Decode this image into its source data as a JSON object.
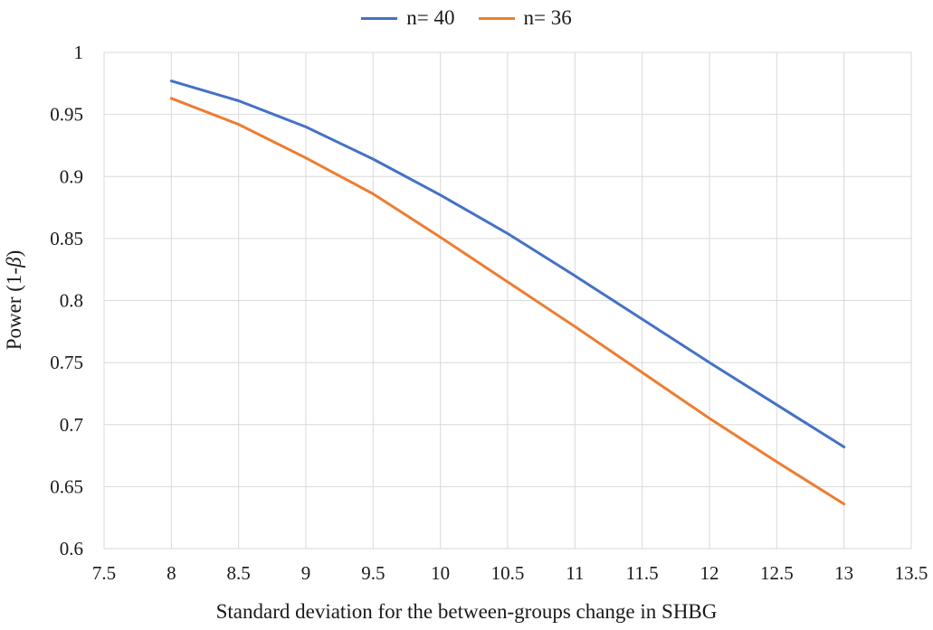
{
  "chart_data": {
    "type": "line",
    "title": "",
    "xlabel": "Standard deviation for the between-groups change in SHBG",
    "ylabel": {
      "prefix": "Power (1-",
      "symbol": "β",
      "suffix": ")"
    },
    "xlim": [
      7.5,
      13.5
    ],
    "ylim": [
      0.6,
      1
    ],
    "x_ticks": [
      "7.5",
      "8",
      "8.5",
      "9",
      "9.5",
      "10",
      "10.5",
      "11",
      "11.5",
      "12",
      "12.5",
      "13",
      "13.5"
    ],
    "y_ticks": [
      "0.6",
      "0.65",
      "0.7",
      "0.75",
      "0.8",
      "0.85",
      "0.9",
      "0.95",
      "1"
    ],
    "grid": true,
    "legend_position": "top-center",
    "x": [
      8,
      8.5,
      9,
      9.5,
      10,
      10.5,
      11,
      11.5,
      12,
      12.5,
      13
    ],
    "series": [
      {
        "name": "n= 40",
        "color": "#4472c4",
        "values": [
          0.977,
          0.961,
          0.94,
          0.914,
          0.885,
          0.854,
          0.82,
          0.785,
          0.75,
          0.716,
          0.682
        ]
      },
      {
        "name": "n= 36",
        "color": "#ed7d31",
        "values": [
          0.963,
          0.942,
          0.915,
          0.886,
          0.851,
          0.815,
          0.779,
          0.742,
          0.705,
          0.67,
          0.636
        ]
      }
    ]
  }
}
